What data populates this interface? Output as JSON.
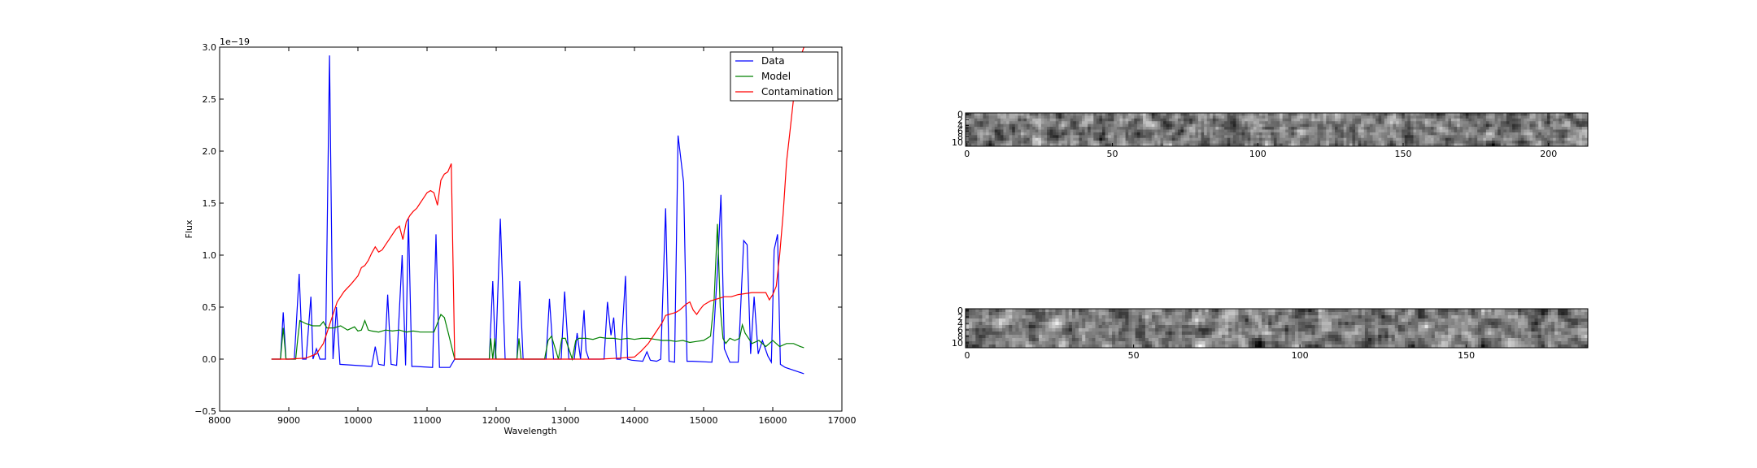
{
  "chart_data": [
    {
      "type": "line",
      "title": "",
      "xlabel": "Wavelength",
      "ylabel": "Flux",
      "y_offset_label": "1e−19",
      "xlim": [
        8000,
        17000
      ],
      "ylim": [
        -0.5,
        3.0
      ],
      "xticks": [
        8000,
        9000,
        10000,
        11000,
        12000,
        13000,
        14000,
        15000,
        16000,
        17000
      ],
      "yticks": [
        -0.5,
        0.0,
        0.5,
        1.0,
        1.5,
        2.0,
        2.5,
        3.0
      ],
      "xtick_labels": [
        "8000",
        "9000",
        "10000",
        "11000",
        "12000",
        "13000",
        "14000",
        "15000",
        "16000",
        "17000"
      ],
      "ytick_labels": [
        "−0.5",
        "0.0",
        "0.5",
        "1.0",
        "1.5",
        "2.0",
        "2.5",
        "3.0"
      ],
      "grid": false,
      "legend": "top-right",
      "series": [
        {
          "name": "Data",
          "color": "#0000ff",
          "x": [
            8750,
            8880,
            8920,
            8960,
            9000,
            9080,
            9150,
            9200,
            9250,
            9320,
            9350,
            9400,
            9450,
            9530,
            9590,
            9640,
            9690,
            9740,
            10200,
            10250,
            10300,
            10380,
            10430,
            10480,
            10560,
            10640,
            10690,
            10730,
            10780,
            10830,
            11080,
            11130,
            11180,
            11330,
            11400,
            11900,
            11950,
            11990,
            12060,
            12130,
            12250,
            12300,
            12340,
            12390,
            12720,
            12770,
            12830,
            12940,
            12990,
            13050,
            13130,
            13170,
            13220,
            13270,
            13300,
            13340,
            13430,
            13560,
            13610,
            13660,
            13700,
            13740,
            13800,
            13870,
            13900,
            13960,
            14120,
            14180,
            14230,
            14320,
            14380,
            14450,
            14500,
            14580,
            14630,
            14710,
            14760,
            14780,
            14840,
            15120,
            15200,
            15250,
            15300,
            15380,
            15500,
            15580,
            15630,
            15680,
            15730,
            15790,
            15850,
            15930,
            15980,
            16020,
            16070,
            16110,
            16180,
            16450
          ],
          "y": [
            0.0,
            0.0,
            0.45,
            0.0,
            0.0,
            0.0,
            0.82,
            0.0,
            0.0,
            0.6,
            0.0,
            0.1,
            0.0,
            0.0,
            2.92,
            0.0,
            0.5,
            -0.05,
            -0.07,
            0.12,
            -0.05,
            -0.06,
            0.62,
            -0.05,
            -0.06,
            1.0,
            -0.06,
            1.35,
            -0.07,
            -0.07,
            -0.08,
            1.2,
            -0.08,
            -0.08,
            0.0,
            0.0,
            0.75,
            0.0,
            1.35,
            0.0,
            0.0,
            0.0,
            0.75,
            0.0,
            0.0,
            0.58,
            0.0,
            0.0,
            0.65,
            0.0,
            0.0,
            0.25,
            0.0,
            0.47,
            0.08,
            0.0,
            0.0,
            0.0,
            0.55,
            0.23,
            0.4,
            0.0,
            0.0,
            0.8,
            0.0,
            -0.01,
            -0.02,
            0.07,
            -0.01,
            -0.02,
            0.0,
            1.45,
            -0.02,
            -0.03,
            2.15,
            1.7,
            -0.02,
            -0.02,
            -0.02,
            -0.03,
            0.85,
            1.58,
            0.1,
            -0.03,
            -0.03,
            1.14,
            1.1,
            0.05,
            0.6,
            0.05,
            0.18,
            0.03,
            -0.03,
            1.05,
            1.2,
            -0.05,
            -0.08,
            -0.14
          ]
        },
        {
          "name": "Model",
          "color": "#008000",
          "x": [
            8750,
            8880,
            8920,
            8960,
            9000,
            9100,
            9130,
            9160,
            9250,
            9350,
            9450,
            9500,
            9550,
            9650,
            9750,
            9850,
            9950,
            10000,
            10050,
            10100,
            10150,
            10200,
            10300,
            10400,
            10500,
            10600,
            10700,
            10800,
            10900,
            11000,
            11100,
            11200,
            11250,
            11300,
            11400,
            11900,
            11920,
            11950,
            11980,
            12000,
            12300,
            12330,
            12360,
            12700,
            12750,
            12800,
            12900,
            12950,
            13000,
            13100,
            13150,
            13200,
            13300,
            13400,
            13500,
            13600,
            13700,
            13800,
            13900,
            14000,
            14100,
            14200,
            14300,
            14400,
            14500,
            14600,
            14700,
            14800,
            14900,
            15000,
            15100,
            15150,
            15200,
            15240,
            15280,
            15320,
            15380,
            15450,
            15520,
            15560,
            15600,
            15700,
            15800,
            15900,
            16000,
            16100,
            16200,
            16300,
            16400,
            16450
          ],
          "y": [
            0.0,
            0.0,
            0.3,
            0.0,
            0.0,
            0.0,
            0.2,
            0.37,
            0.34,
            0.32,
            0.32,
            0.36,
            0.3,
            0.3,
            0.32,
            0.28,
            0.31,
            0.27,
            0.28,
            0.37,
            0.28,
            0.27,
            0.26,
            0.28,
            0.27,
            0.28,
            0.26,
            0.27,
            0.26,
            0.26,
            0.26,
            0.43,
            0.4,
            0.27,
            0.0,
            0.0,
            0.2,
            0.0,
            0.2,
            0.0,
            0.0,
            0.2,
            0.0,
            0.0,
            0.18,
            0.22,
            0.0,
            0.2,
            0.2,
            0.0,
            0.18,
            0.2,
            0.2,
            0.19,
            0.21,
            0.2,
            0.2,
            0.19,
            0.2,
            0.19,
            0.2,
            0.2,
            0.19,
            0.18,
            0.18,
            0.17,
            0.18,
            0.16,
            0.17,
            0.18,
            0.22,
            0.55,
            1.3,
            0.5,
            0.2,
            0.15,
            0.2,
            0.18,
            0.2,
            0.33,
            0.25,
            0.15,
            0.18,
            0.12,
            0.18,
            0.12,
            0.15,
            0.15,
            0.12,
            0.11
          ]
        },
        {
          "name": "Contamination",
          "color": "#ff0000",
          "x": [
            8750,
            9000,
            9250,
            9400,
            9500,
            9550,
            9600,
            9650,
            9700,
            9800,
            9900,
            10000,
            10050,
            10100,
            10150,
            10200,
            10250,
            10300,
            10350,
            10400,
            10450,
            10500,
            10550,
            10600,
            10650,
            10700,
            10750,
            10800,
            10850,
            10900,
            10950,
            11000,
            11050,
            11100,
            11150,
            11200,
            11250,
            11300,
            11350,
            11400,
            11420,
            11900,
            12500,
            13000,
            13500,
            13800,
            14000,
            14100,
            14200,
            14300,
            14400,
            14450,
            14500,
            14550,
            14600,
            14650,
            14700,
            14750,
            14800,
            14850,
            14900,
            14950,
            15000,
            15100,
            15200,
            15300,
            15400,
            15500,
            15600,
            15700,
            15800,
            15900,
            15950,
            16000,
            16050,
            16100,
            16150,
            16200,
            16250,
            16300,
            16350,
            16400,
            16450
          ],
          "y": [
            0.0,
            0.0,
            0.01,
            0.05,
            0.15,
            0.25,
            0.35,
            0.45,
            0.55,
            0.65,
            0.72,
            0.8,
            0.88,
            0.9,
            0.95,
            1.02,
            1.08,
            1.03,
            1.05,
            1.1,
            1.15,
            1.2,
            1.25,
            1.28,
            1.15,
            1.32,
            1.38,
            1.42,
            1.45,
            1.5,
            1.55,
            1.6,
            1.62,
            1.6,
            1.48,
            1.72,
            1.78,
            1.8,
            1.88,
            0.0,
            0.0,
            0.0,
            0.0,
            0.0,
            0.0,
            0.01,
            0.02,
            0.08,
            0.15,
            0.25,
            0.35,
            0.42,
            0.43,
            0.44,
            0.45,
            0.47,
            0.5,
            0.53,
            0.55,
            0.47,
            0.43,
            0.48,
            0.52,
            0.56,
            0.58,
            0.6,
            0.6,
            0.62,
            0.63,
            0.64,
            0.64,
            0.64,
            0.57,
            0.62,
            0.7,
            1.0,
            1.4,
            1.9,
            2.2,
            2.5,
            2.7,
            2.9,
            3.0
          ]
        }
      ]
    },
    {
      "type": "heatmap",
      "title": "",
      "xticks": [
        0,
        50,
        100,
        150,
        200
      ],
      "xtick_labels": [
        "0",
        "50",
        "100",
        "150",
        "200"
      ],
      "yticks": [
        0,
        2,
        4,
        6,
        8,
        10
      ],
      "ytick_labels": [
        "0",
        "2",
        "4",
        "6",
        "8",
        "10"
      ],
      "xlim": [
        0,
        214
      ],
      "ylim": [
        11.5,
        -0.5
      ],
      "colormap": "gray",
      "values": "noise image, 12 x 214 pixels (values not labeled)"
    },
    {
      "type": "heatmap",
      "title": "",
      "xticks": [
        0,
        50,
        100,
        150
      ],
      "xtick_labels": [
        "0",
        "50",
        "100",
        "150"
      ],
      "yticks": [
        0,
        2,
        4,
        6,
        8,
        10
      ],
      "ytick_labels": [
        "0",
        "2",
        "4",
        "6",
        "8",
        "10"
      ],
      "xlim": [
        0,
        187
      ],
      "ylim": [
        11.5,
        -0.5
      ],
      "colormap": "gray",
      "values": "noise image, 12 x 187 pixels (values not labeled)"
    }
  ]
}
